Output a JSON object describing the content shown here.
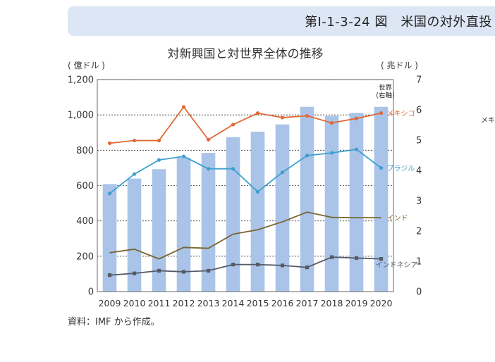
{
  "header": {
    "title": "第Ⅰ-1-3-24 図　米国の対外直投"
  },
  "source_note": "資料：IMF から作成。",
  "side_text": "メキ",
  "chart_data": {
    "type": "bar+line",
    "title": "対新興国と対世界全体の推移",
    "left_axis_label": "( 億ドル )",
    "right_axis_label": "( 兆ドル )",
    "x": [
      "2009",
      "2010",
      "2011",
      "2012",
      "2013",
      "2014",
      "2015",
      "2016",
      "2017",
      "2018",
      "2019",
      "2020"
    ],
    "left_ylim": [
      0,
      1200
    ],
    "left_ticks": [
      "0",
      "200",
      "400",
      "600",
      "800",
      "1,000",
      "1,200"
    ],
    "right_ylim": [
      0,
      7
    ],
    "right_ticks": [
      "0",
      "1",
      "2",
      "3",
      "4",
      "5",
      "6",
      "7"
    ],
    "grid": "dotted horizontal at left ticks",
    "bars": {
      "name": "世界(右軸)",
      "label_lines": [
        "世界",
        "(右軸)"
      ],
      "axis": "right",
      "color": "#a9c4e8",
      "values": [
        3.55,
        3.73,
        4.04,
        4.42,
        4.58,
        5.1,
        5.28,
        5.52,
        6.1,
        5.8,
        5.9,
        6.1
      ]
    },
    "series": [
      {
        "name": "メキシコ",
        "color": "#e06a37",
        "marker": "circle",
        "values": [
          840,
          855,
          855,
          1045,
          860,
          945,
          1010,
          985,
          995,
          955,
          980,
          1010
        ]
      },
      {
        "name": "ブラジル",
        "color": "#3e9fcf",
        "marker": "circle",
        "values": [
          555,
          665,
          745,
          765,
          695,
          695,
          565,
          675,
          770,
          785,
          805,
          700
        ]
      },
      {
        "name": "インド",
        "color": "#7a6531",
        "marker": "none",
        "values": [
          220,
          240,
          185,
          250,
          245,
          325,
          350,
          395,
          450,
          420,
          418,
          418
        ]
      },
      {
        "name": "インドネシア",
        "color": "#555a66",
        "marker": "square",
        "values": [
          93,
          103,
          118,
          112,
          118,
          153,
          153,
          148,
          137,
          195,
          190,
          185
        ]
      }
    ]
  }
}
